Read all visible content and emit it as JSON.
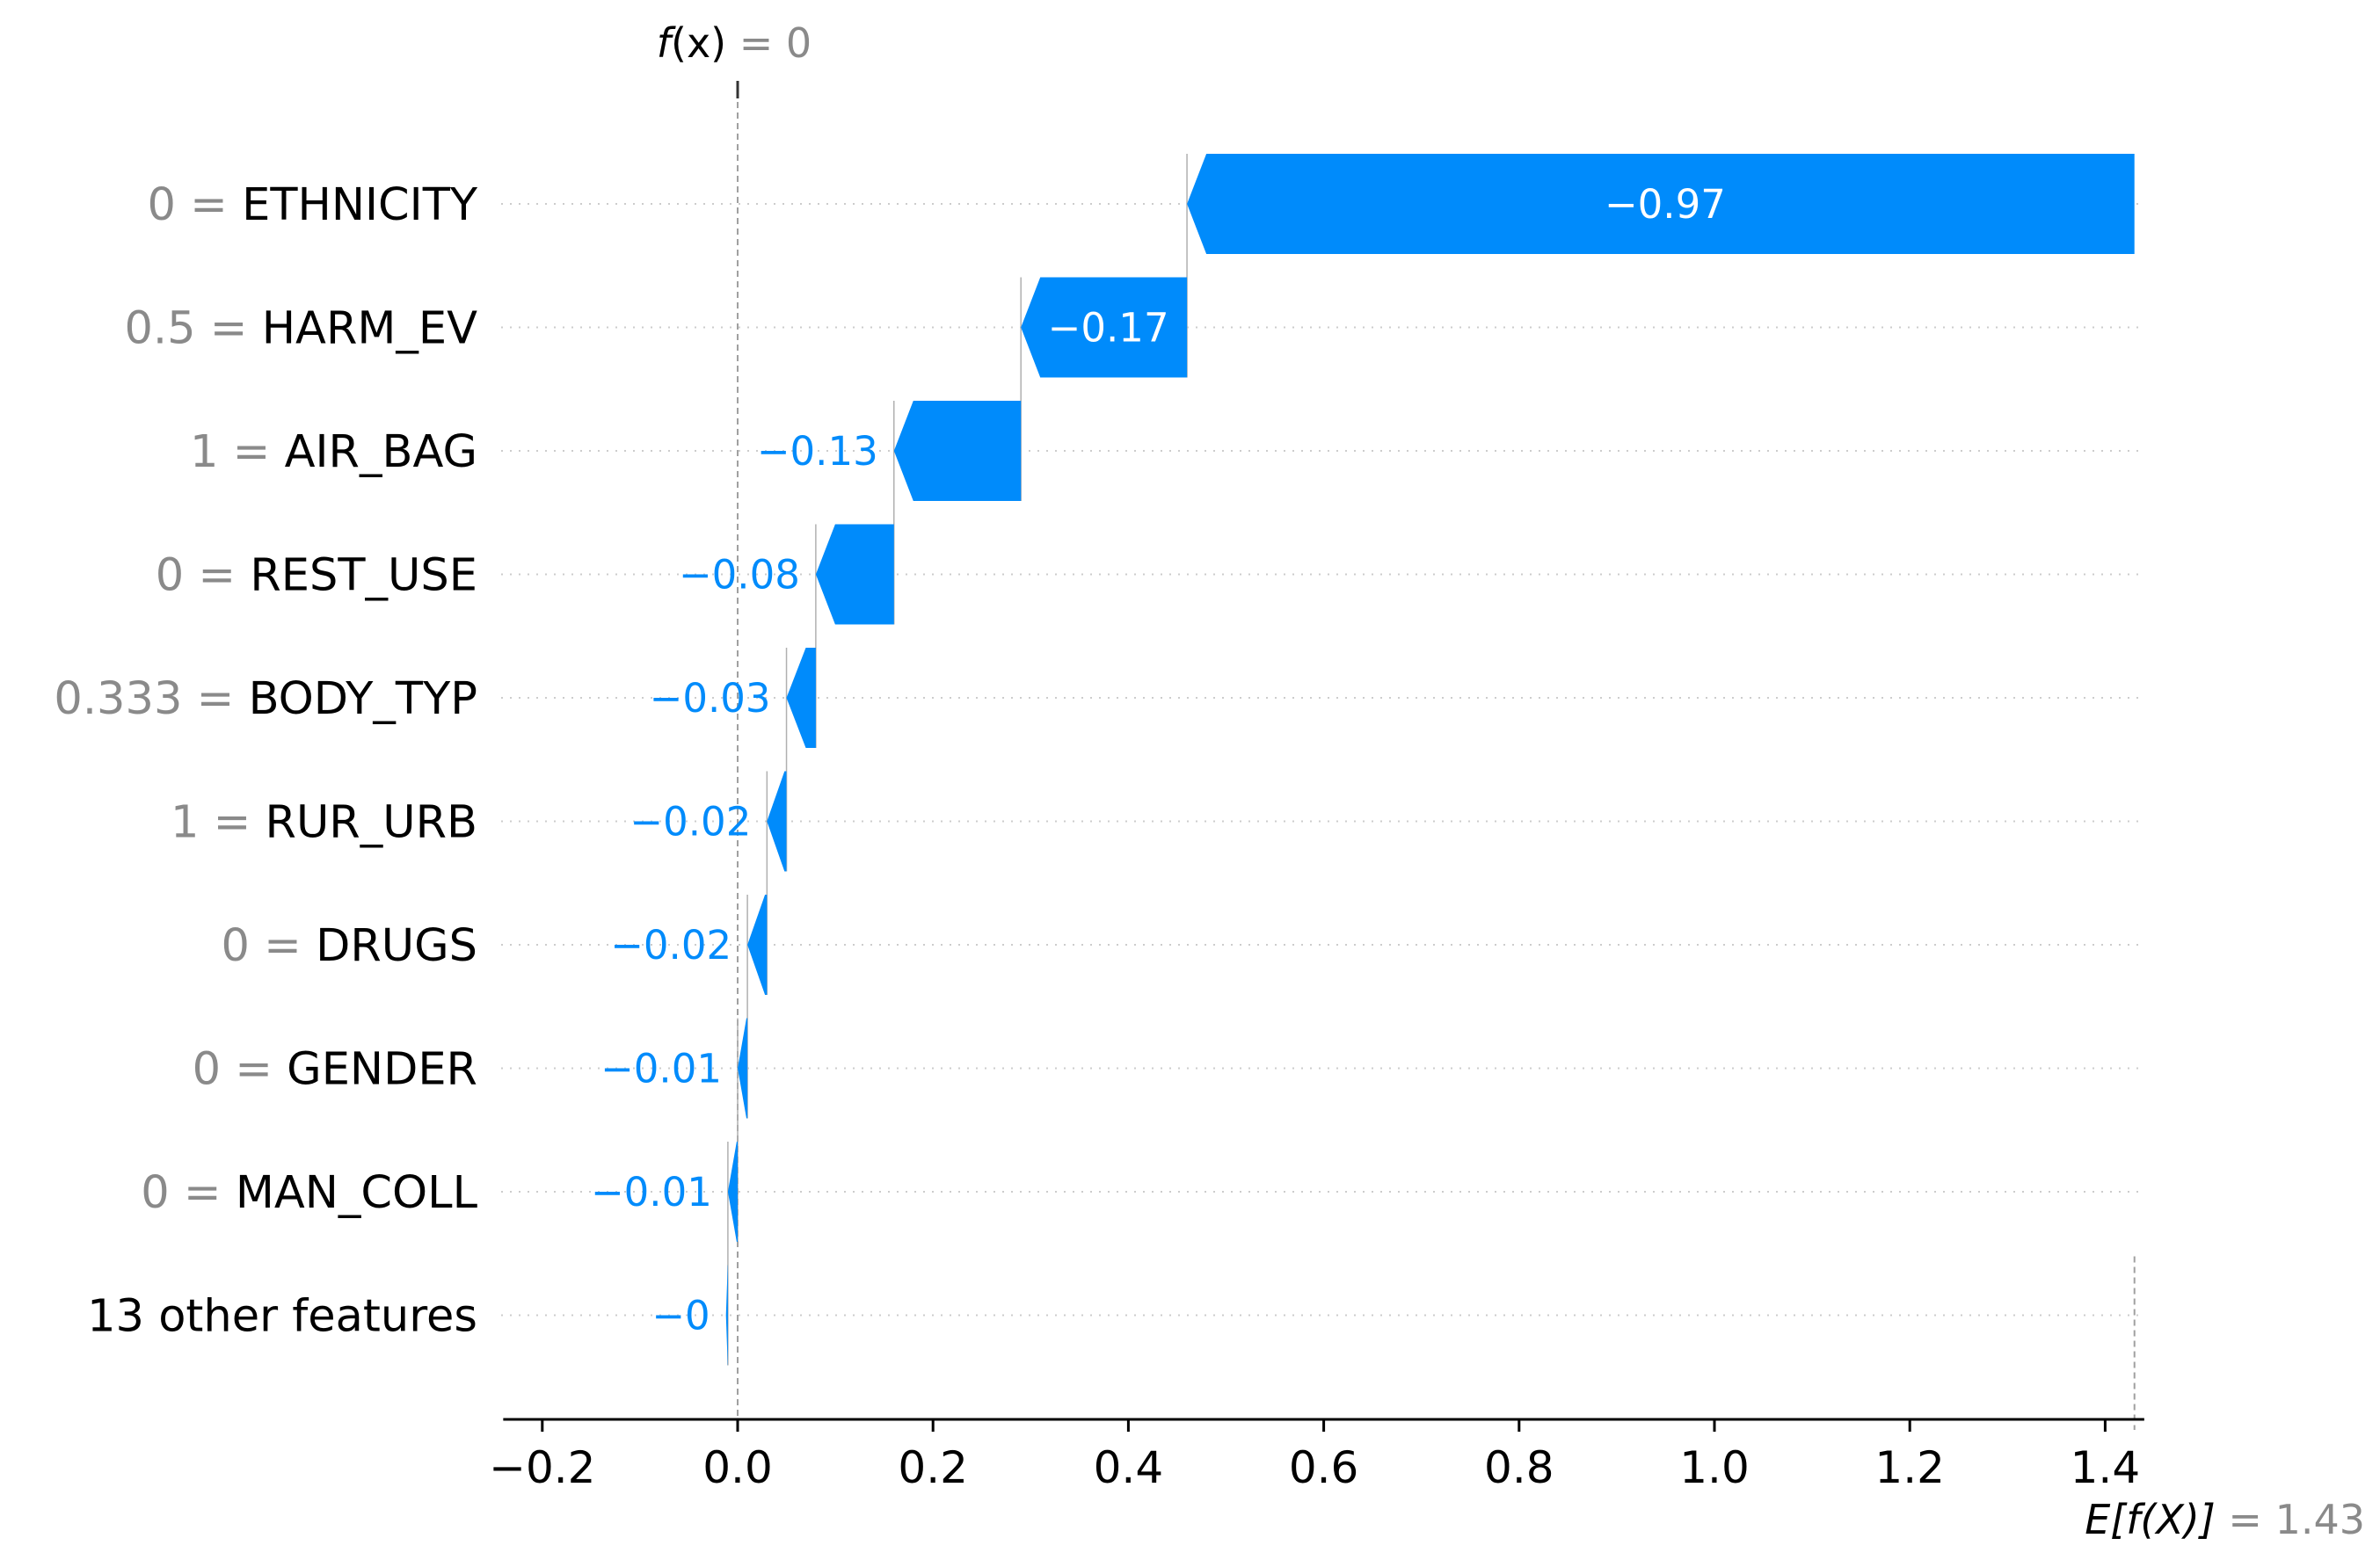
{
  "chart_data": {
    "type": "waterfall",
    "fx": {
      "label_italic": "f",
      "label_paren": "(x)",
      "value_text": " = 0",
      "value": 0
    },
    "expected": {
      "label": "E[f(X)]",
      "value_text": " = 1.43",
      "value": 1.43
    },
    "features": [
      {
        "value": "0",
        "name": "ETHNICITY",
        "shap": -0.97,
        "label": "−0.97",
        "label_inside": true
      },
      {
        "value": "0.5",
        "name": "HARM_EV",
        "shap": -0.17,
        "label": "−0.17",
        "label_inside": true
      },
      {
        "value": "1",
        "name": "AIR_BAG",
        "shap": -0.13,
        "label": "−0.13",
        "label_inside": false
      },
      {
        "value": "0",
        "name": "REST_USE",
        "shap": -0.08,
        "label": "−0.08",
        "label_inside": false
      },
      {
        "value": "0.333",
        "name": "BODY_TYP",
        "shap": -0.03,
        "label": "−0.03",
        "label_inside": false
      },
      {
        "value": "1",
        "name": "RUR_URB",
        "shap": -0.02,
        "label": "−0.02",
        "label_inside": false
      },
      {
        "value": "0",
        "name": "DRUGS",
        "shap": -0.02,
        "label": "−0.02",
        "label_inside": false
      },
      {
        "value": "0",
        "name": "GENDER",
        "shap": -0.01,
        "label": "−0.01",
        "label_inside": false
      },
      {
        "value": "0",
        "name": "MAN_COLL",
        "shap": -0.01,
        "label": "−0.01",
        "label_inside": false
      },
      {
        "value": "",
        "name": "13 other features",
        "shap": -0.002,
        "label": "−0",
        "label_inside": false
      }
    ],
    "x_ticks": [
      {
        "value": -0.2,
        "label": "−0.2"
      },
      {
        "value": 0.0,
        "label": "0.0"
      },
      {
        "value": 0.2,
        "label": "0.2"
      },
      {
        "value": 0.4,
        "label": "0.4"
      },
      {
        "value": 0.6,
        "label": "0.6"
      },
      {
        "value": 0.8,
        "label": "0.8"
      },
      {
        "value": 1.0,
        "label": "1.0"
      },
      {
        "value": 1.2,
        "label": "1.2"
      },
      {
        "value": 1.4,
        "label": "1.4"
      }
    ],
    "xlim": [
      -0.24,
      1.44
    ],
    "colors": {
      "negative": "#008bfb",
      "muted_text": "#8a8a8a",
      "grid": "#cccccc"
    }
  }
}
